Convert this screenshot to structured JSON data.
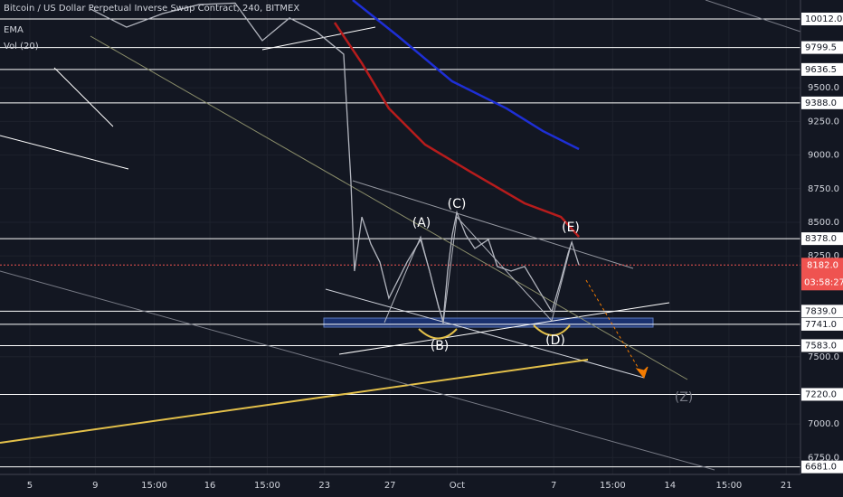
{
  "chart_data": {
    "type": "line",
    "title": "Bitcoin / US Dollar Perpetual Inverse Swap Contract, 240, BITMEX",
    "legend": [
      "EMA",
      "Vol (20)"
    ],
    "grid": true,
    "xlim": [
      3.18,
      52.07
    ],
    "ylim": [
      6625,
      10153
    ],
    "xticks": [
      5,
      9,
      {
        "value": 12.6,
        "label": "15:00"
      },
      16,
      {
        "value": 19.5,
        "label": "15:00"
      },
      23,
      27,
      {
        "value": 31.1,
        "label": "Oct"
      },
      {
        "value": 37,
        "label": "7"
      },
      {
        "value": 40.6,
        "label": "15:00"
      },
      {
        "value": 44.1,
        "label": "14"
      },
      {
        "value": 47.7,
        "label": "15:00"
      },
      {
        "value": 51.2,
        "label": "21"
      }
    ],
    "yticks": [
      {
        "value": 9500,
        "label": "9500.0"
      },
      {
        "value": 9250,
        "label": "9250.0"
      },
      {
        "value": 9000,
        "label": "9000.0"
      },
      {
        "value": 8750,
        "label": "8750.0"
      },
      {
        "value": 8500,
        "label": "8500.0"
      },
      {
        "value": 8250,
        "label": "8250.0"
      },
      {
        "value": 7500,
        "label": "7500.0"
      },
      {
        "value": 7000,
        "label": "7000.0"
      },
      {
        "value": 6750,
        "label": "6750.0"
      }
    ],
    "levels": [
      {
        "value": 10012,
        "label": "10012.0"
      },
      {
        "value": 9799.5,
        "label": "9799.5"
      },
      {
        "value": 9636.5,
        "label": "9636.5"
      },
      {
        "value": 9388,
        "label": "9388.0"
      },
      {
        "value": 8378,
        "label": "8378.0"
      },
      {
        "value": 7839,
        "label": "7839.0"
      },
      {
        "value": 7741,
        "label": "7741.0"
      },
      {
        "value": 7583,
        "label": "7583.0"
      },
      {
        "value": 7220,
        "label": "7220.0"
      },
      {
        "value": 6681,
        "label": "6681.0"
      }
    ],
    "last_price": {
      "value": 8182,
      "label": "8182.0"
    },
    "countdown": "03:58:27",
    "annotations": [
      "(A)",
      "(B)",
      "(C)",
      "(D)",
      "(E)",
      "(Z)"
    ],
    "series": [
      {
        "color": "#b2b5be",
        "x": [
          8.7,
          10.91,
          13.12,
          15.33,
          17.54,
          19.2,
          20.86,
          22.51,
          24.17,
          24.61,
          24.83,
          25.28,
          25.83,
          26.38,
          26.93,
          27.49,
          28.04,
          28.87,
          29.42,
          29.97,
          30.25,
          30.52,
          30.8,
          31.08,
          31.63,
          32.18,
          33.01,
          33.56,
          34.39,
          35.22,
          36.05,
          36.88,
          37.44,
          37.88,
          38.1,
          38.54
        ],
        "values": [
          10086,
          9951,
          10052,
          10119,
          10130,
          9851,
          10019,
          9918,
          9750,
          8809,
          8137,
          8540,
          8339,
          8204,
          7935,
          8070,
          8204,
          8372,
          8137,
          7868,
          7767,
          8137,
          8406,
          8574,
          8406,
          8305,
          8372,
          8171,
          8137,
          8171,
          8003,
          7835,
          8070,
          8271,
          8352,
          8182
        ]
      },
      {
        "color": "#b71c1c",
        "x": [
          23.62,
          25.28,
          26.93,
          29.14,
          31.91,
          35.22,
          37.44,
          38.54
        ],
        "values": [
          9985,
          9683,
          9347,
          9078,
          8876,
          8641,
          8540,
          8392
        ]
      },
      {
        "color": "#1e2fd6",
        "x": [
          24.72,
          27.49,
          30.8,
          34.11,
          36.33,
          38.54
        ],
        "values": [
          10153,
          9884,
          9548,
          9347,
          9179,
          9044
        ]
      }
    ]
  }
}
